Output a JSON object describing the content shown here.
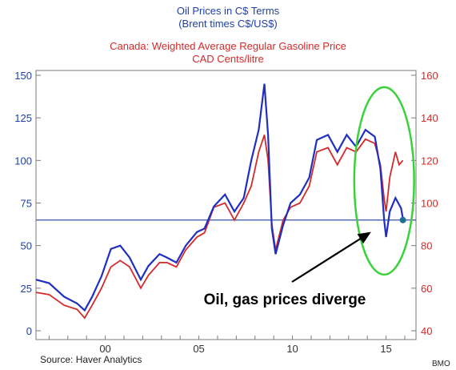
{
  "chart_data": {
    "type": "line",
    "title_lines": [
      "Oil Prices in C$ Terms",
      "(Brent times C$/US$)"
    ],
    "subtitle_lines": [
      "Canada: Weighted Average Regular Gasoline Price",
      "CAD Cents/litre"
    ],
    "x_ticks": [
      "00",
      "05",
      "10",
      "15"
    ],
    "x_range": [
      1996.3,
      2016.6
    ],
    "left_axis": {
      "ticks": [
        "0",
        "25",
        "50",
        "75",
        "100",
        "125",
        "150"
      ],
      "range": [
        0,
        150
      ],
      "color": "#1f3fa6"
    },
    "right_axis": {
      "ticks": [
        "40",
        "60",
        "80",
        "100",
        "120",
        "140",
        "160"
      ],
      "range": [
        40,
        160
      ],
      "color": "#d42a2a"
    },
    "reference_line": {
      "axis": "left",
      "value": 65,
      "color": "#3a4fa0"
    },
    "series": [
      {
        "axis": "left",
        "color": "#1f2fbf",
        "points": [
          [
            1996.3,
            30
          ],
          [
            1997.0,
            28
          ],
          [
            1997.8,
            20
          ],
          [
            1998.5,
            16
          ],
          [
            1998.9,
            12
          ],
          [
            1999.3,
            20
          ],
          [
            1999.8,
            32
          ],
          [
            2000.3,
            48
          ],
          [
            2000.8,
            50
          ],
          [
            2001.3,
            43
          ],
          [
            2001.9,
            30
          ],
          [
            2002.3,
            38
          ],
          [
            2002.9,
            45
          ],
          [
            2003.3,
            43
          ],
          [
            2003.8,
            40
          ],
          [
            2004.3,
            50
          ],
          [
            2004.9,
            58
          ],
          [
            2005.3,
            60
          ],
          [
            2005.8,
            73
          ],
          [
            2006.4,
            80
          ],
          [
            2006.9,
            70
          ],
          [
            2007.4,
            78
          ],
          [
            2007.8,
            100
          ],
          [
            2008.2,
            118
          ],
          [
            2008.5,
            145
          ],
          [
            2008.7,
            115
          ],
          [
            2008.9,
            60
          ],
          [
            2009.1,
            45
          ],
          [
            2009.5,
            62
          ],
          [
            2009.9,
            75
          ],
          [
            2010.4,
            80
          ],
          [
            2010.9,
            90
          ],
          [
            2011.3,
            112
          ],
          [
            2011.9,
            115
          ],
          [
            2012.4,
            105
          ],
          [
            2012.9,
            115
          ],
          [
            2013.4,
            108
          ],
          [
            2013.9,
            118
          ],
          [
            2014.4,
            114
          ],
          [
            2014.7,
            95
          ],
          [
            2014.9,
            65
          ],
          [
            2015.0,
            55
          ],
          [
            2015.2,
            70
          ],
          [
            2015.5,
            78
          ],
          [
            2015.8,
            72
          ],
          [
            2015.9,
            66
          ]
        ]
      },
      {
        "axis": "right",
        "color": "#d42a2a",
        "points": [
          [
            1996.3,
            58
          ],
          [
            1997.0,
            57
          ],
          [
            1997.8,
            52
          ],
          [
            1998.5,
            50
          ],
          [
            1998.9,
            46
          ],
          [
            1999.3,
            52
          ],
          [
            1999.8,
            60
          ],
          [
            2000.3,
            70
          ],
          [
            2000.8,
            73
          ],
          [
            2001.3,
            70
          ],
          [
            2001.9,
            60
          ],
          [
            2002.3,
            66
          ],
          [
            2002.9,
            72
          ],
          [
            2003.3,
            72
          ],
          [
            2003.8,
            70
          ],
          [
            2004.3,
            78
          ],
          [
            2004.9,
            84
          ],
          [
            2005.3,
            86
          ],
          [
            2005.8,
            98
          ],
          [
            2006.4,
            100
          ],
          [
            2006.9,
            92
          ],
          [
            2007.4,
            100
          ],
          [
            2007.8,
            108
          ],
          [
            2008.2,
            124
          ],
          [
            2008.5,
            132
          ],
          [
            2008.7,
            120
          ],
          [
            2008.9,
            90
          ],
          [
            2009.1,
            78
          ],
          [
            2009.5,
            92
          ],
          [
            2009.9,
            98
          ],
          [
            2010.4,
            100
          ],
          [
            2010.9,
            108
          ],
          [
            2011.3,
            124
          ],
          [
            2011.9,
            126
          ],
          [
            2012.4,
            118
          ],
          [
            2012.9,
            126
          ],
          [
            2013.4,
            124
          ],
          [
            2013.9,
            130
          ],
          [
            2014.4,
            128
          ],
          [
            2014.7,
            118
          ],
          [
            2014.9,
            102
          ],
          [
            2015.0,
            96
          ],
          [
            2015.2,
            112
          ],
          [
            2015.5,
            124
          ],
          [
            2015.7,
            118
          ],
          [
            2015.9,
            120
          ]
        ]
      }
    ],
    "highlight_end_point": {
      "x": 2015.9,
      "y": 65,
      "color": "#1f6f8f"
    },
    "annotation": {
      "text": "Oil, gas prices diverge",
      "arrow_to": [
        2014.2,
        58
      ]
    },
    "highlight_ellipse": {
      "cx": 2014.9,
      "cy": 88,
      "rx": 1.6,
      "ry": 55,
      "color": "#3ad13a"
    }
  },
  "source": "Source: Haver Analytics",
  "credit": "BMO"
}
